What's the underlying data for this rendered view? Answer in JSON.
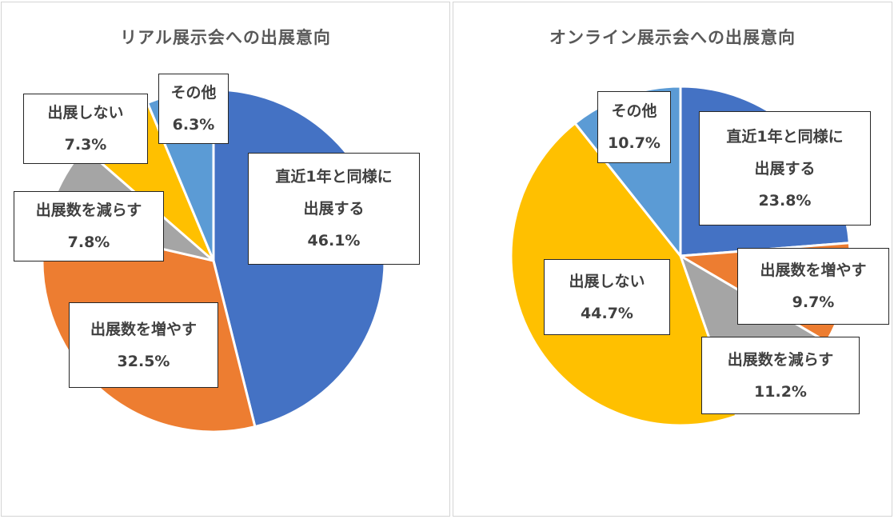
{
  "chart_data": [
    {
      "type": "pie",
      "title": "リアル展示会への出展意向",
      "start_angle_deg": 0,
      "direction": "clockwise",
      "slices": [
        {
          "label": [
            "直近1年と同様に",
            "出展する"
          ],
          "value": 46.1,
          "value_label": "46.1%",
          "color": "#4472C4"
        },
        {
          "label": [
            "出展数を増やす"
          ],
          "value": 32.5,
          "value_label": "32.5%",
          "color": "#ED7D31"
        },
        {
          "label": [
            "出展数を減らす"
          ],
          "value": 7.8,
          "value_label": "7.8%",
          "color": "#A5A5A5"
        },
        {
          "label": [
            "出展しない"
          ],
          "value": 7.3,
          "value_label": "7.3%",
          "color": "#FFC000"
        },
        {
          "label": [
            "その他"
          ],
          "value": 6.3,
          "value_label": "6.3%",
          "color": "#5B9BD5"
        }
      ]
    },
    {
      "type": "pie",
      "title": "オンライン展示会への出展意向",
      "start_angle_deg": 0,
      "direction": "clockwise",
      "slices": [
        {
          "label": [
            "直近1年と同様に",
            "出展する"
          ],
          "value": 23.8,
          "value_label": "23.8%",
          "color": "#4472C4"
        },
        {
          "label": [
            "出展数を増やす"
          ],
          "value": 9.7,
          "value_label": "9.7%",
          "color": "#ED7D31"
        },
        {
          "label": [
            "出展数を減らす"
          ],
          "value": 11.2,
          "value_label": "11.2%",
          "color": "#A5A5A5"
        },
        {
          "label": [
            "出展しない"
          ],
          "value": 44.7,
          "value_label": "44.7%",
          "color": "#FFC000"
        },
        {
          "label": [
            "その他"
          ],
          "value": 10.7,
          "value_label": "10.7%",
          "color": "#5B9BD5"
        }
      ]
    }
  ]
}
